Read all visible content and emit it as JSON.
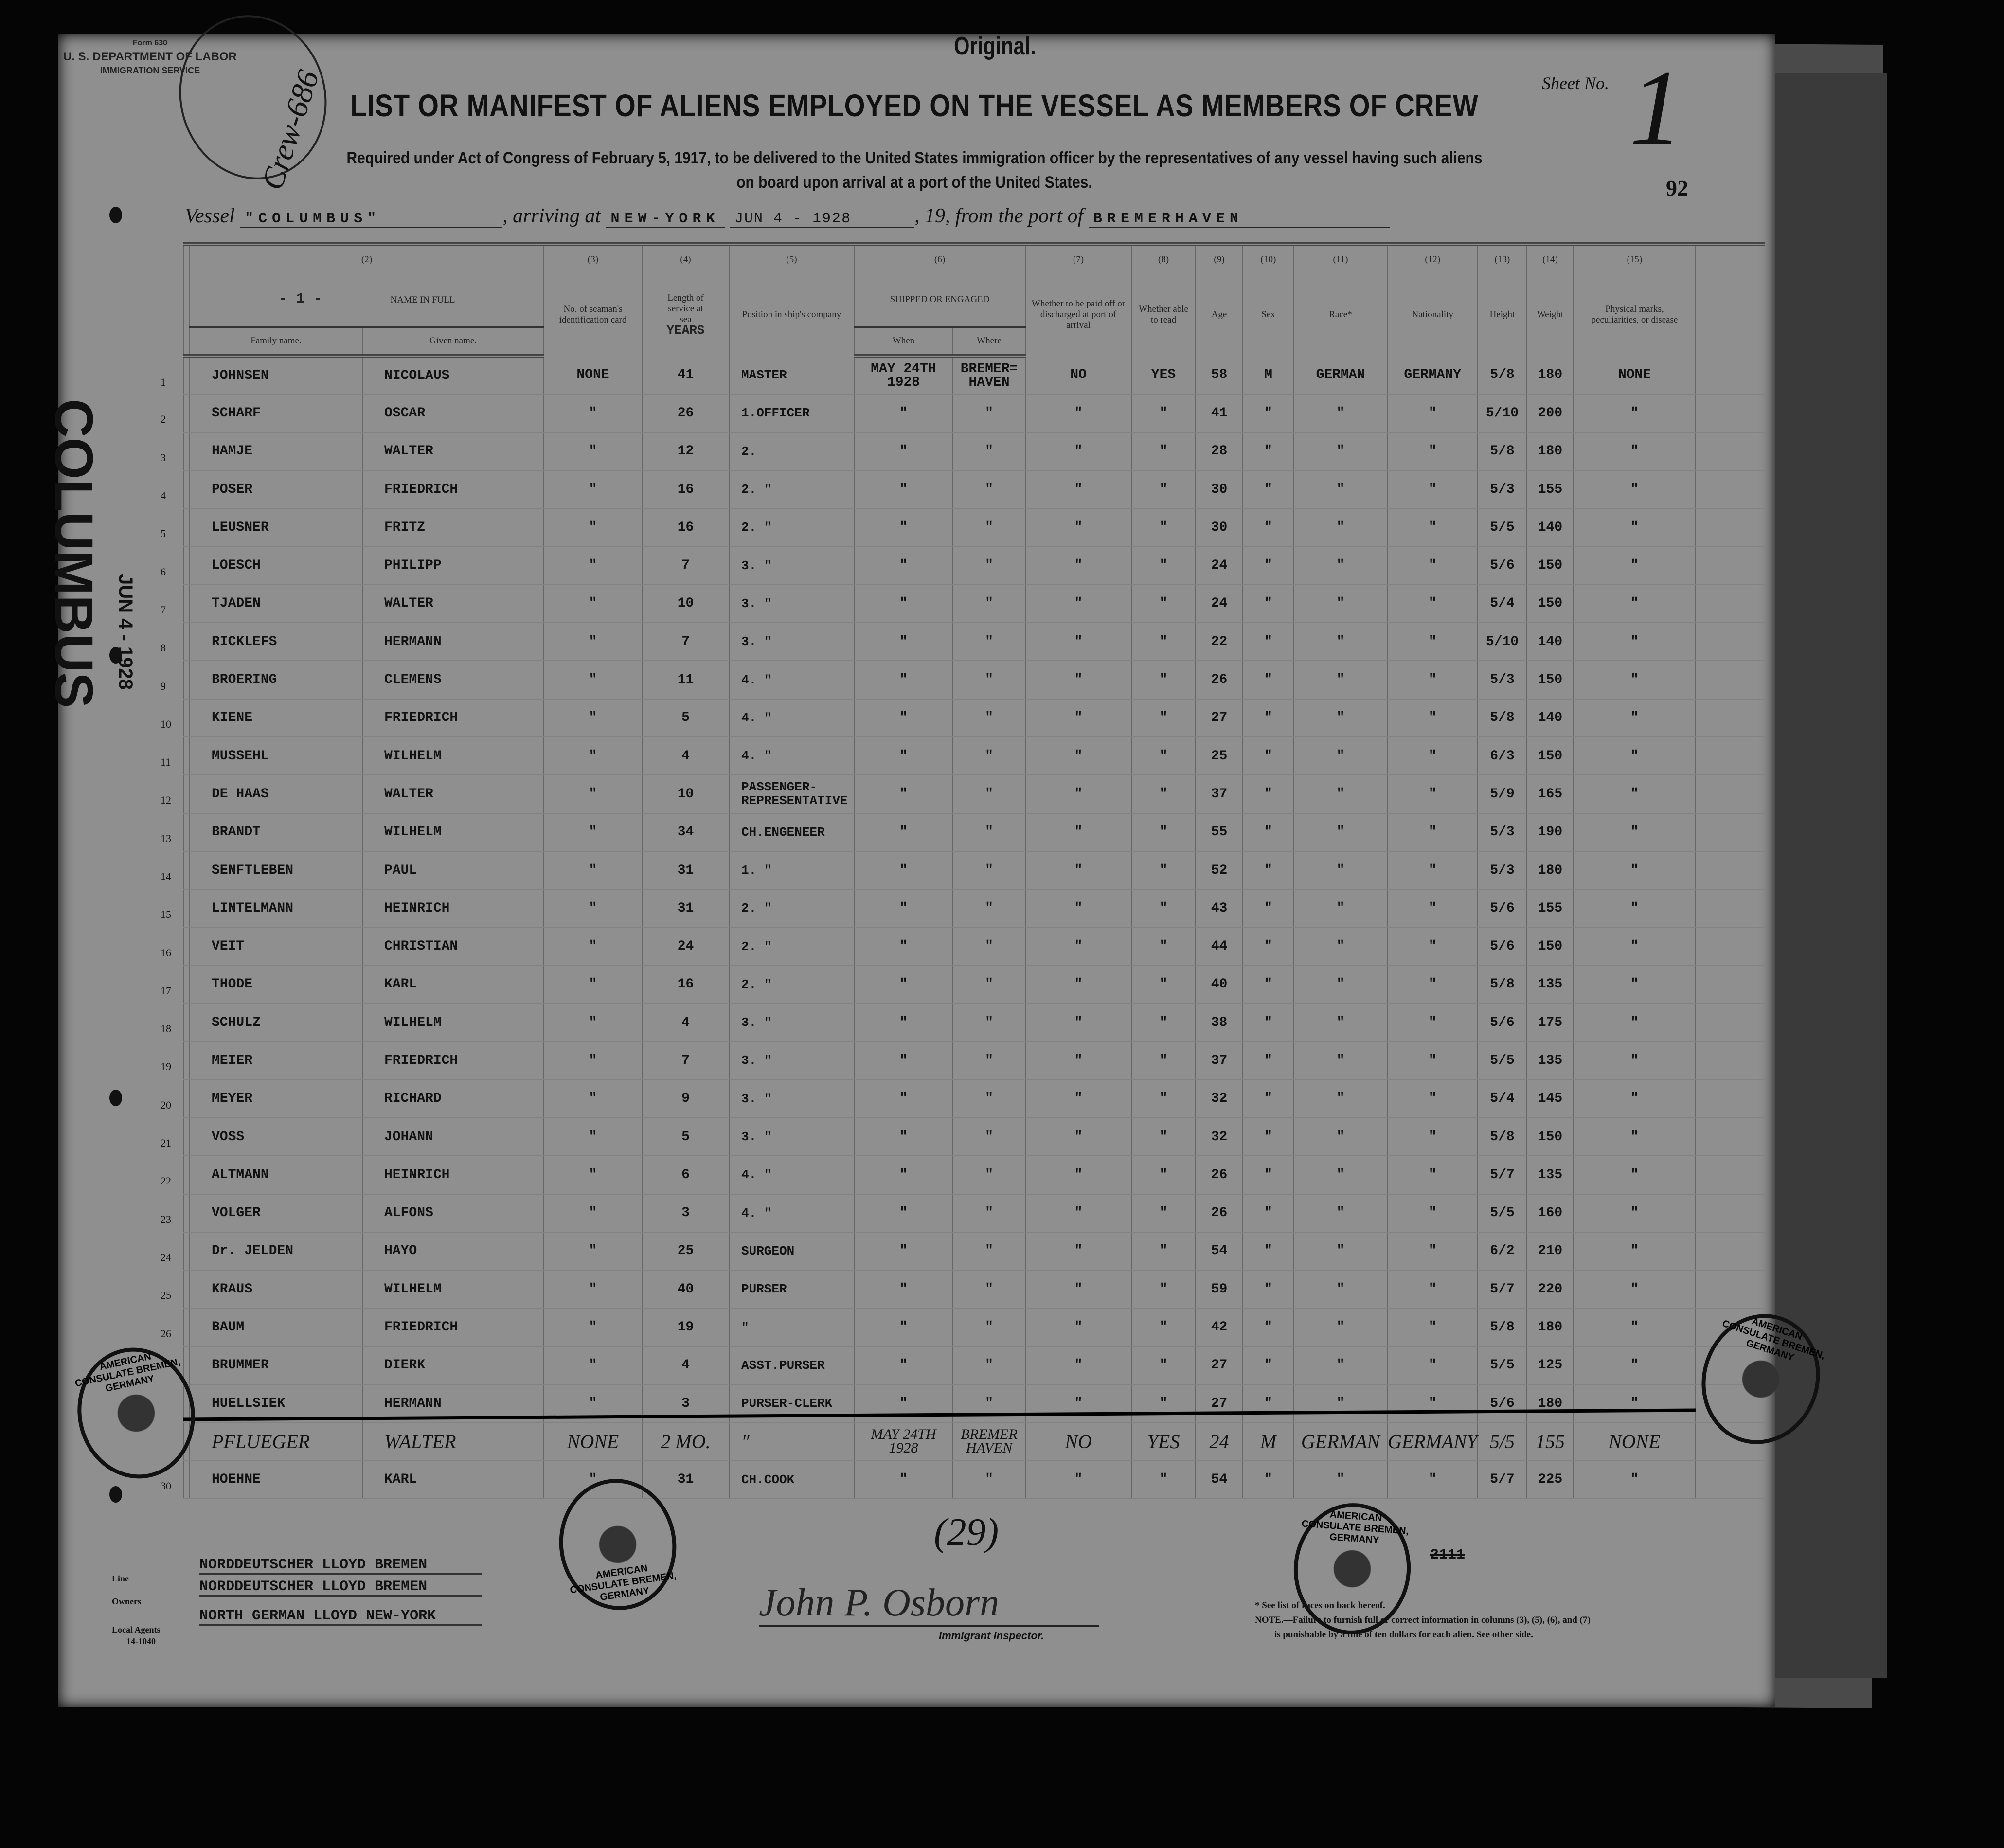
{
  "form": {
    "form_no": "Form 630",
    "department": "U. S. DEPARTMENT OF LABOR",
    "service": "IMMIGRATION SERVICE"
  },
  "original": "Original.",
  "title": "LIST OR MANIFEST OF ALIENS EMPLOYED ON THE VESSEL AS MEMBERS OF CREW",
  "subtitle1": "Required under Act of Congress of February 5, 1917, to be delivered to the United States immigration officer by the representatives of any vessel having such aliens",
  "subtitle2": "on board upon arrival at a port of the United States.",
  "sheet_label": "Sheet No.",
  "sheet_no": "1",
  "page_number": "92",
  "crew_note": "Crew-686",
  "side_stamp": {
    "vessel": "COLUMBUS",
    "date": "JUN 4 - 1928"
  },
  "vessel_line": {
    "vessel_label": "Vessel",
    "vessel": "\"COLUMBUS\"",
    "arriving_label": ", arriving at",
    "port": "NEW-YORK",
    "date": "JUN 4 - 1928",
    "year_label": ", 19",
    "port_label": ", from the port of",
    "from_port": "BREMERHAVEN"
  },
  "headers": {
    "nums": [
      "(2)",
      "(3)",
      "(4)",
      "(5)",
      "(6)",
      "(7)",
      "(8)",
      "(9)",
      "(10)",
      "(11)",
      "(12)",
      "(13)",
      "(14)",
      "(15)"
    ],
    "name_in_full": "NAME IN FULL",
    "group_no": "- 1 -",
    "family": "Family name.",
    "given": "Given name.",
    "id_card": "No. of seaman's identification card",
    "service": "Length of service at sea",
    "years": "YEARS",
    "position": "Position in ship's company",
    "shipped": "SHIPPED OR ENGAGED",
    "when": "When",
    "where": "Where",
    "paid_off": "Whether to be paid off or discharged at port of arrival",
    "read": "Whether able to read",
    "age": "Age",
    "sex": "Sex",
    "race": "Race*",
    "nationality": "Nationality",
    "height": "Height",
    "weight": "Weight",
    "marks": "Physical marks, peculiarities, or disease"
  },
  "rows": [
    [
      "1",
      "JOHNSEN",
      "NICOLAUS",
      "NONE",
      "41",
      "MASTER",
      "MAY 24TH 1928",
      "BREMER= HAVEN",
      "NO",
      "YES",
      "58",
      "M",
      "GERMAN",
      "GERMANY",
      "5/8",
      "180",
      "NONE"
    ],
    [
      "2",
      "SCHARF",
      "OSCAR",
      "″",
      "26",
      "1.OFFICER",
      "″",
      "″",
      "″",
      "″",
      "41",
      "″",
      "″",
      "″",
      "5/10",
      "200",
      "″"
    ],
    [
      "3",
      "HAMJE",
      "WALTER",
      "″",
      "12",
      "2.",
      "″",
      "″",
      "″",
      "″",
      "28",
      "″",
      "″",
      "″",
      "5/8",
      "180",
      "″"
    ],
    [
      "4",
      "POSER",
      "FRIEDRICH",
      "″",
      "16",
      "2. ″",
      "″",
      "″",
      "″",
      "″",
      "30",
      "″",
      "″",
      "″",
      "5/3",
      "155",
      "″"
    ],
    [
      "5",
      "LEUSNER",
      "FRITZ",
      "″",
      "16",
      "2. ″",
      "″",
      "″",
      "″",
      "″",
      "30",
      "″",
      "″",
      "″",
      "5/5",
      "140",
      "″"
    ],
    [
      "6",
      "LOESCH",
      "PHILIPP",
      "″",
      "7",
      "3. ″",
      "″",
      "″",
      "″",
      "″",
      "24",
      "″",
      "″",
      "″",
      "5/6",
      "150",
      "″"
    ],
    [
      "7",
      "TJADEN",
      "WALTER",
      "″",
      "10",
      "3. ″",
      "″",
      "″",
      "″",
      "″",
      "24",
      "″",
      "″",
      "″",
      "5/4",
      "150",
      "″"
    ],
    [
      "8",
      "RICKLEFS",
      "HERMANN",
      "″",
      "7",
      "3. ″",
      "″",
      "″",
      "″",
      "″",
      "22",
      "″",
      "″",
      "″",
      "5/10",
      "140",
      "″"
    ],
    [
      "9",
      "BROERING",
      "CLEMENS",
      "″",
      "11",
      "4. ″",
      "″",
      "″",
      "″",
      "″",
      "26",
      "″",
      "″",
      "″",
      "5/3",
      "150",
      "″"
    ],
    [
      "10",
      "KIENE",
      "FRIEDRICH",
      "″",
      "5",
      "4. ″",
      "″",
      "″",
      "″",
      "″",
      "27",
      "″",
      "″",
      "″",
      "5/8",
      "140",
      "″"
    ],
    [
      "11",
      "MUSSEHL",
      "WILHELM",
      "″",
      "4",
      "4. ″",
      "″",
      "″",
      "″",
      "″",
      "25",
      "″",
      "″",
      "″",
      "6/3",
      "150",
      "″"
    ],
    [
      "12",
      "DE HAAS",
      "WALTER",
      "″",
      "10",
      "PASSENGER- REPRESENTATIVE",
      "″",
      "″",
      "″",
      "″",
      "37",
      "″",
      "″",
      "″",
      "5/9",
      "165",
      "″"
    ],
    [
      "13",
      "BRANDT",
      "WILHELM",
      "″",
      "34",
      "CH.ENGENEER",
      "″",
      "″",
      "″",
      "″",
      "55",
      "″",
      "″",
      "″",
      "5/3",
      "190",
      "″"
    ],
    [
      "14",
      "SENFTLEBEN",
      "PAUL",
      "″",
      "31",
      "1. ″",
      "″",
      "″",
      "″",
      "″",
      "52",
      "″",
      "″",
      "″",
      "5/3",
      "180",
      "″"
    ],
    [
      "15",
      "LINTELMANN",
      "HEINRICH",
      "″",
      "31",
      "2. ″",
      "″",
      "″",
      "″",
      "″",
      "43",
      "″",
      "″",
      "″",
      "5/6",
      "155",
      "″"
    ],
    [
      "16",
      "VEIT",
      "CHRISTIAN",
      "″",
      "24",
      "2. ″",
      "″",
      "″",
      "″",
      "″",
      "44",
      "″",
      "″",
      "″",
      "5/6",
      "150",
      "″"
    ],
    [
      "17",
      "THODE",
      "KARL",
      "″",
      "16",
      "2. ″",
      "″",
      "″",
      "″",
      "″",
      "40",
      "″",
      "″",
      "″",
      "5/8",
      "135",
      "″"
    ],
    [
      "18",
      "SCHULZ",
      "WILHELM",
      "″",
      "4",
      "3. ″",
      "″",
      "″",
      "″",
      "″",
      "38",
      "″",
      "″",
      "″",
      "5/6",
      "175",
      "″"
    ],
    [
      "19",
      "MEIER",
      "FRIEDRICH",
      "″",
      "7",
      "3. ″",
      "″",
      "″",
      "″",
      "″",
      "37",
      "″",
      "″",
      "″",
      "5/5",
      "135",
      "″"
    ],
    [
      "20",
      "MEYER",
      "RICHARD",
      "″",
      "9",
      "3. ″",
      "″",
      "″",
      "″",
      "″",
      "32",
      "″",
      "″",
      "″",
      "5/4",
      "145",
      "″"
    ],
    [
      "21",
      "VOSS",
      "JOHANN",
      "″",
      "5",
      "3. ″",
      "″",
      "″",
      "″",
      "″",
      "32",
      "″",
      "″",
      "″",
      "5/8",
      "150",
      "″"
    ],
    [
      "22",
      "ALTMANN",
      "HEINRICH",
      "″",
      "6",
      "4. ″",
      "″",
      "″",
      "″",
      "″",
      "26",
      "″",
      "″",
      "″",
      "5/7",
      "135",
      "″"
    ],
    [
      "23",
      "VOLGER",
      "ALFONS",
      "″",
      "3",
      "4. ″",
      "″",
      "″",
      "″",
      "″",
      "26",
      "″",
      "″",
      "″",
      "5/5",
      "160",
      "″"
    ],
    [
      "24",
      "Dr. JELDEN",
      "HAYO",
      "″",
      "25",
      "SURGEON",
      "″",
      "″",
      "″",
      "″",
      "54",
      "″",
      "″",
      "″",
      "6/2",
      "210",
      "″"
    ],
    [
      "25",
      "KRAUS",
      "WILHELM",
      "″",
      "40",
      "PURSER",
      "″",
      "″",
      "″",
      "″",
      "59",
      "″",
      "″",
      "″",
      "5/7",
      "220",
      "″"
    ],
    [
      "26",
      "BAUM",
      "FRIEDRICH",
      "″",
      "19",
      "″",
      "″",
      "″",
      "″",
      "″",
      "42",
      "″",
      "″",
      "″",
      "5/8",
      "180",
      "″"
    ],
    [
      "",
      "BRUMMER",
      "DIERK",
      "″",
      "4",
      "ASST.PURSER",
      "″",
      "″",
      "″",
      "″",
      "27",
      "″",
      "″",
      "″",
      "5/5",
      "125",
      "″"
    ],
    [
      "",
      "HUELLSIEK",
      "HERMANN",
      "″",
      "3",
      "PURSER-CLERK",
      "″",
      "″",
      "″",
      "″",
      "27",
      "″",
      "″",
      "″",
      "5/6",
      "180",
      "″"
    ],
    [
      "",
      "PFLUEGER",
      "WALTER",
      "NONE",
      "2 MO.",
      "″",
      "MAY 24TH 1928",
      "BREMER HAVEN",
      "NO",
      "YES",
      "24",
      "M",
      "GERMAN",
      "GERMANY",
      "5/5",
      "155",
      "NONE"
    ],
    [
      "30",
      "HOEHNE",
      "KARL",
      "″",
      "31",
      "CH.COOK",
      "″",
      "″",
      "″",
      "″",
      "54",
      "″",
      "″",
      "″",
      "5/7",
      "225",
      "″"
    ]
  ],
  "struck_row": 28,
  "handwritten_row": 29,
  "total_handwritten": "(29)",
  "stamp_text": "AMERICAN CONSULATE BREMEN, GERMANY",
  "footer": {
    "line_label": "Line",
    "line": "NORDDEUTSCHER LLOYD BREMEN",
    "owners_label": "Owners",
    "owners": "NORDDEUTSCHER LLOYD BREMEN",
    "agents_label": "Local Agents",
    "agents_form": "14-1040",
    "agents": "NORTH GERMAN LLOYD NEW-YORK",
    "inspector_signature": "John P. Osborn",
    "inspector_label": "Immigrant Inspector.",
    "crossed": "2111",
    "note1": "* See list of races on back hereof.",
    "note2": "NOTE.—Failure to furnish full or correct information in columns (3), (5), (6), and (7)",
    "note3": "is punishable by a fine of ten dollars for each alien. See other side."
  },
  "colors": {
    "paper": "#8f8f8f",
    "ink": "#111111",
    "background": "#050505"
  }
}
